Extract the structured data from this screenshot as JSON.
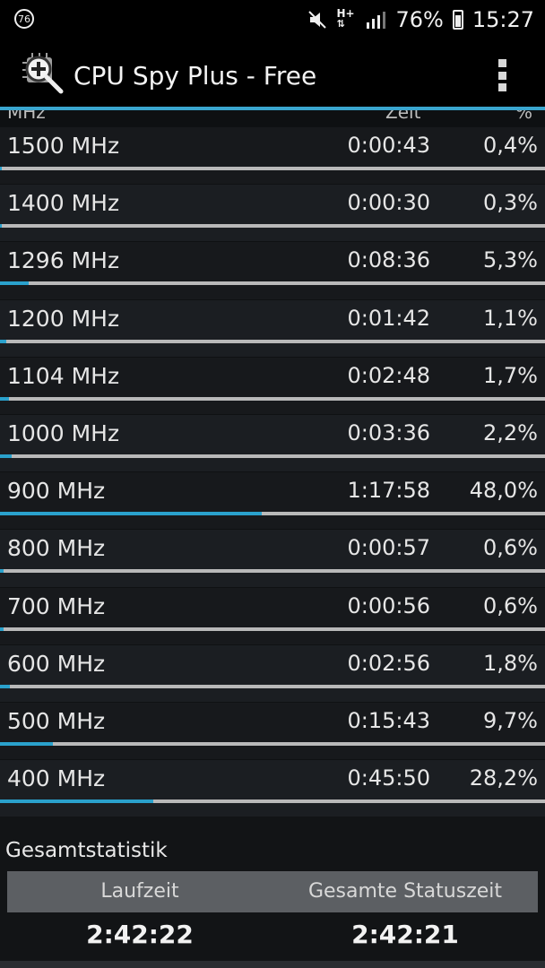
{
  "status_bar": {
    "notification_count": "76",
    "network_label": "H+",
    "battery_percent": "76%",
    "time": "15:27",
    "icons": [
      "mute-icon",
      "hplus-network-icon",
      "signal-icon",
      "battery-icon"
    ]
  },
  "app_bar": {
    "title": "CPU Spy Plus - Free",
    "app_icon": "cpu-magnifier-icon",
    "menu_icon": "overflow-menu-icon"
  },
  "list_header": {
    "col_freq": "MHz",
    "col_time": "Zeit",
    "col_pct": "%"
  },
  "colors": {
    "accent": "#3aa6cf",
    "bar_fill": "#2aa1cc",
    "bar_track": "#b9b9b9"
  },
  "states": [
    {
      "freq": "1500 MHz",
      "time": "0:00:43",
      "pct": "0,4%",
      "share": 0.004
    },
    {
      "freq": "1400 MHz",
      "time": "0:00:30",
      "pct": "0,3%",
      "share": 0.003
    },
    {
      "freq": "1296 MHz",
      "time": "0:08:36",
      "pct": "5,3%",
      "share": 0.053
    },
    {
      "freq": "1200 MHz",
      "time": "0:01:42",
      "pct": "1,1%",
      "share": 0.011
    },
    {
      "freq": "1104 MHz",
      "time": "0:02:48",
      "pct": "1,7%",
      "share": 0.017
    },
    {
      "freq": "1000 MHz",
      "time": "0:03:36",
      "pct": "2,2%",
      "share": 0.022
    },
    {
      "freq": "900 MHz",
      "time": "1:17:58",
      "pct": "48,0%",
      "share": 0.48
    },
    {
      "freq": "800 MHz",
      "time": "0:00:57",
      "pct": "0,6%",
      "share": 0.006
    },
    {
      "freq": "700 MHz",
      "time": "0:00:56",
      "pct": "0,6%",
      "share": 0.006
    },
    {
      "freq": "600 MHz",
      "time": "0:02:56",
      "pct": "1,8%",
      "share": 0.018
    },
    {
      "freq": "500 MHz",
      "time": "0:15:43",
      "pct": "9,7%",
      "share": 0.097
    },
    {
      "freq": "400 MHz",
      "time": "0:45:50",
      "pct": "28,2%",
      "share": 0.282
    }
  ],
  "summary": {
    "section_label": "Gesamtstatistik",
    "col1_label": "Laufzeit",
    "col2_label": "Gesamte Statuszeit",
    "col1_value": "2:42:22",
    "col2_value": "2:42:21"
  }
}
